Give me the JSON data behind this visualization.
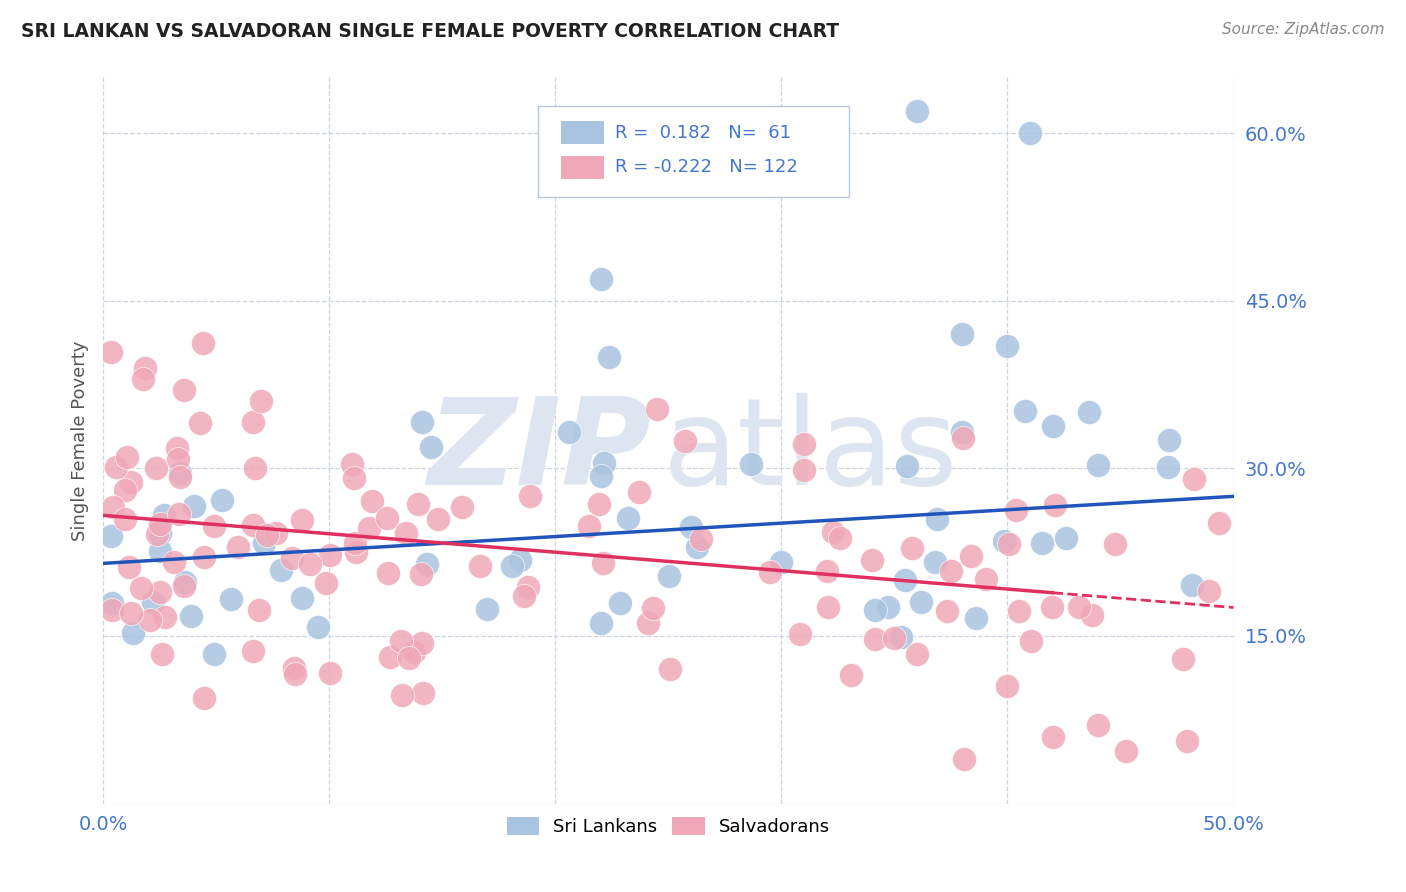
{
  "title": "SRI LANKAN VS SALVADORAN SINGLE FEMALE POVERTY CORRELATION CHART",
  "source": "Source: ZipAtlas.com",
  "ylabel": "Single Female Poverty",
  "x_min": 0.0,
  "x_max": 0.5,
  "y_min": 0.0,
  "y_max": 0.65,
  "y_ticks": [
    0.15,
    0.3,
    0.45,
    0.6
  ],
  "y_tick_labels": [
    "15.0%",
    "30.0%",
    "45.0%",
    "60.0%"
  ],
  "x_ticks": [
    0.0,
    0.1,
    0.2,
    0.3,
    0.4,
    0.5
  ],
  "x_tick_labels": [
    "0.0%",
    "",
    "",
    "",
    "",
    "50.0%"
  ],
  "sri_lankan_color": "#a8c4e0",
  "salvadoran_color": "#f0a8b8",
  "sri_lankan_line_color": "#2255bb",
  "salvadoran_line_color": "#e03060",
  "legend_R_sri": "0.182",
  "legend_N_sri": "61",
  "legend_R_sal": "-0.222",
  "legend_N_sal": "122",
  "background_color": "#ffffff",
  "grid_color": "#ccd5e0",
  "tick_color": "#4477cc",
  "title_color": "#222222",
  "ylabel_color": "#555555",
  "watermark_zip_color": "#dde6f0",
  "watermark_atlas_color": "#dde6f0"
}
